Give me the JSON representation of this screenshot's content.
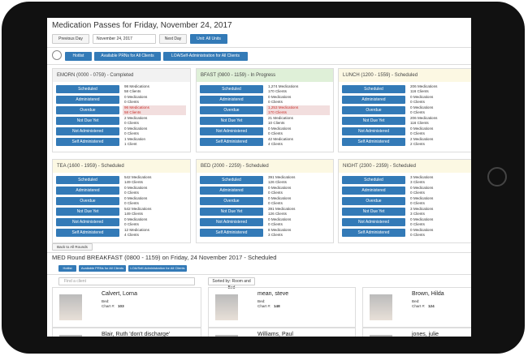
{
  "header": {
    "title": "Medication Passes for Friday, November 24, 2017"
  },
  "toolbar": {
    "previous": "Previous Day",
    "date": "November 24, 2017",
    "next": "Next Day",
    "unit": "Unit: All Units"
  },
  "actions": [
    "Hotlist",
    "Available PRNs for All Clients",
    "LOA/Self-Administration for All Clients"
  ],
  "status_labels": [
    "Scheduled",
    "Administered",
    "Overdue",
    "Not Due Yet",
    "Not Administered",
    "Self Administered"
  ],
  "rounds": [
    {
      "title": "EMORN (0000 - 0759) - Completed",
      "rows": [
        [
          "98 Medications",
          "58 Clients"
        ],
        [
          "0 Medications",
          "0 Clients"
        ],
        [
          "96 Medications",
          "58 Clients"
        ],
        [
          "2 Medications",
          "0 Clients"
        ],
        [
          "0 Medications",
          "0 Clients"
        ],
        [
          "1 Medication",
          "1 Client"
        ]
      ]
    },
    {
      "title": "BFAST (0800 - 1159) - In Progress",
      "rows": [
        [
          "1,274 Medications",
          "170 Clients"
        ],
        [
          "0 Medications",
          "0 Clients"
        ],
        [
          "1,253 Medications",
          "170 Clients"
        ],
        [
          "21 Medications",
          "10 Clients"
        ],
        [
          "0 Medications",
          "0 Clients"
        ],
        [
          "42 Medications",
          "4 Clients"
        ]
      ]
    },
    {
      "title": "LUNCH (1200 - 1559) - Scheduled",
      "rows": [
        [
          "206 Medications",
          "116 Clients"
        ],
        [
          "0 Medications",
          "0 Clients"
        ],
        [
          "0 Medications",
          "0 Clients"
        ],
        [
          "206 Medications",
          "116 Clients"
        ],
        [
          "0 Medications",
          "0 Clients"
        ],
        [
          "2 Medications",
          "2 Clients"
        ]
      ]
    },
    {
      "title": "TEA (1600 - 1959) - Scheduled",
      "rows": [
        [
          "542 Medications",
          "149 Clients"
        ],
        [
          "0 Medications",
          "0 Clients"
        ],
        [
          "0 Medications",
          "0 Clients"
        ],
        [
          "542 Medications",
          "149 Clients"
        ],
        [
          "0 Medications",
          "0 Clients"
        ],
        [
          "12 Medications",
          "4 Clients"
        ]
      ]
    },
    {
      "title": "BED (2000 - 2259) - Scheduled",
      "rows": [
        [
          "391 Medications",
          "126 Clients"
        ],
        [
          "0 Medications",
          "0 Clients"
        ],
        [
          "0 Medications",
          "0 Clients"
        ],
        [
          "391 Medications",
          "126 Clients"
        ],
        [
          "0 Medications",
          "0 Clients"
        ],
        [
          "8 Medications",
          "3 Clients"
        ]
      ]
    },
    {
      "title": "NIGHT (2300 - 2359) - Scheduled",
      "rows": [
        [
          "3 Medications",
          "3 Clients"
        ],
        [
          "0 Medications",
          "0 Clients"
        ],
        [
          "0 Medications",
          "0 Clients"
        ],
        [
          "3 Medications",
          "3 Clients"
        ],
        [
          "0 Medications",
          "0 Clients"
        ],
        [
          "0 Medications",
          "0 Clients"
        ]
      ]
    }
  ],
  "detail": {
    "back": "Back to All Rounds",
    "title": "MED Round BREAKFAST (0800 - 1159) on Friday, 24 November 2017 - Scheduled",
    "search": "Find a client",
    "sort": "Sorted by: Room and Bed",
    "bed_label": "Bed:",
    "chart_label": "Chart #:",
    "clients": [
      {
        "name": "Calvert, Lorna",
        "chart": "103"
      },
      {
        "name": "mean, steve",
        "chart": "148"
      },
      {
        "name": "Brown, Hilda",
        "chart": "124"
      },
      {
        "name": "Blair, Ruth 'don't discharge'"
      },
      {
        "name": "Williams, Paul"
      },
      {
        "name": "jones, julie"
      }
    ]
  }
}
